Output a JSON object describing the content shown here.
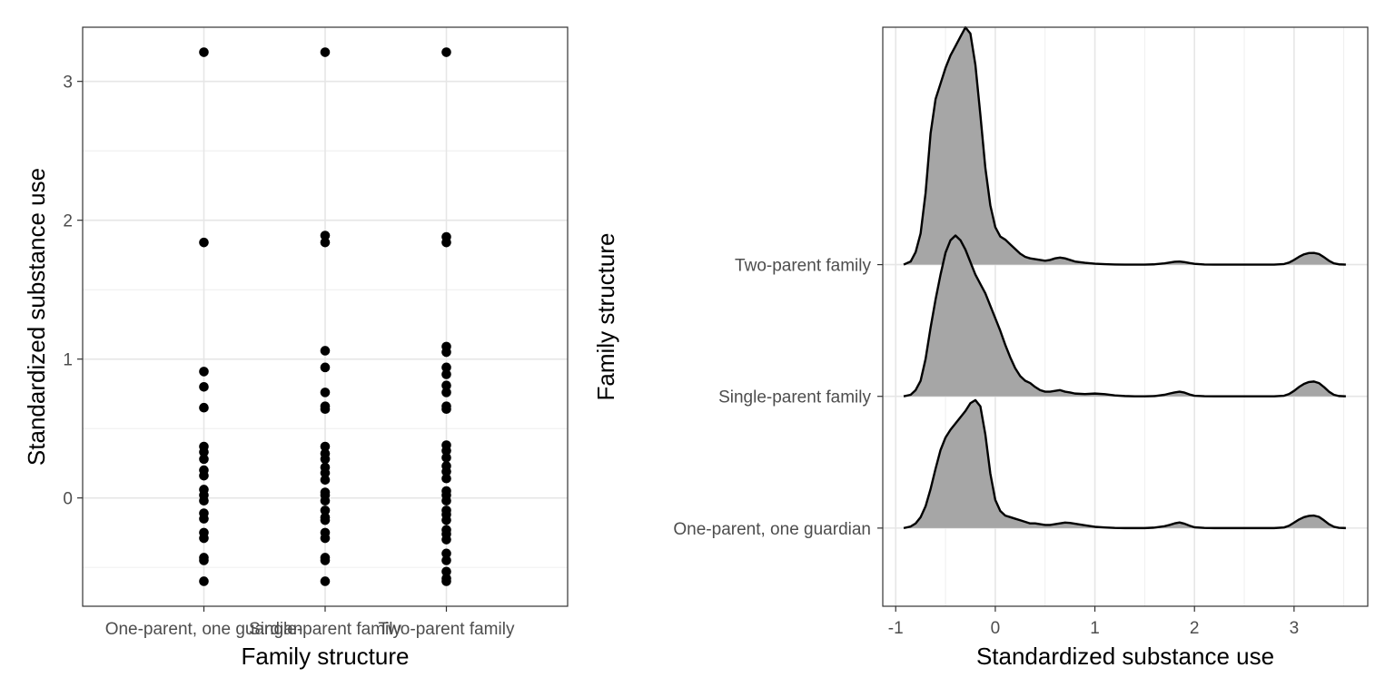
{
  "chart_data": [
    {
      "type": "scatter",
      "xlabel": "Family structure",
      "ylabel": "Standardized substance use",
      "categories": [
        "One-parent, one guardian",
        "Single-parent family",
        "Two-parent family"
      ],
      "y_ticks": [
        0,
        1,
        2,
        3
      ],
      "y_tick_labels": [
        "0",
        "1",
        "2",
        "3"
      ],
      "ylim": [
        -0.78,
        3.39
      ],
      "grid": true,
      "point_color": "#000000",
      "points": [
        {
          "category": "One-parent, one guardian",
          "values": [
            3.21,
            1.84,
            0.91,
            0.8,
            0.65,
            0.37,
            0.33,
            0.28,
            0.2,
            0.16,
            0.06,
            0.02,
            -0.02,
            -0.11,
            -0.15,
            -0.25,
            -0.29,
            -0.43,
            -0.45,
            -0.6
          ]
        },
        {
          "category": "Single-parent family",
          "values": [
            3.21,
            1.89,
            1.84,
            1.06,
            0.94,
            0.76,
            0.66,
            0.64,
            0.37,
            0.32,
            0.28,
            0.22,
            0.18,
            0.13,
            0.04,
            0.02,
            -0.02,
            -0.09,
            -0.14,
            -0.16,
            -0.25,
            -0.29,
            -0.43,
            -0.45,
            -0.6
          ]
        },
        {
          "category": "Two-parent family",
          "values": [
            3.21,
            1.88,
            1.84,
            1.09,
            1.05,
            0.94,
            0.89,
            0.81,
            0.76,
            0.66,
            0.64,
            0.38,
            0.34,
            0.29,
            0.23,
            0.19,
            0.14,
            0.05,
            0.02,
            -0.02,
            -0.09,
            -0.12,
            -0.16,
            -0.23,
            -0.26,
            -0.3,
            -0.4,
            -0.45,
            -0.53,
            -0.58,
            -0.6
          ]
        }
      ]
    },
    {
      "type": "area",
      "subtype": "ridgeline-density",
      "xlabel": "Standardized substance use",
      "ylabel": "Family structure",
      "x_ticks": [
        -1,
        0,
        1,
        2,
        3
      ],
      "x_tick_labels": [
        "-1",
        "0",
        "1",
        "2",
        "3"
      ],
      "xlim": [
        -1.13,
        3.74
      ],
      "grid": true,
      "fill_color": "#a6a6a6",
      "line_color": "#000000",
      "x": [
        -0.92,
        -0.85,
        -0.8,
        -0.75,
        -0.7,
        -0.65,
        -0.6,
        -0.55,
        -0.5,
        -0.45,
        -0.4,
        -0.35,
        -0.3,
        -0.25,
        -0.2,
        -0.15,
        -0.1,
        -0.05,
        0.0,
        0.05,
        0.1,
        0.15,
        0.2,
        0.25,
        0.3,
        0.35,
        0.4,
        0.45,
        0.5,
        0.55,
        0.6,
        0.65,
        0.7,
        0.75,
        0.8,
        0.9,
        1.0,
        1.1,
        1.2,
        1.3,
        1.4,
        1.5,
        1.6,
        1.7,
        1.75,
        1.8,
        1.85,
        1.9,
        1.95,
        2.0,
        2.1,
        2.2,
        2.4,
        2.6,
        2.8,
        2.9,
        2.95,
        3.0,
        3.05,
        3.1,
        3.15,
        3.2,
        3.25,
        3.3,
        3.35,
        3.4,
        3.45,
        3.52
      ],
      "series": [
        {
          "name": "One-parent, one guardian",
          "values": [
            0.0,
            0.01,
            0.03,
            0.07,
            0.14,
            0.25,
            0.38,
            0.5,
            0.58,
            0.63,
            0.67,
            0.71,
            0.75,
            0.8,
            0.82,
            0.78,
            0.6,
            0.35,
            0.18,
            0.11,
            0.08,
            0.07,
            0.06,
            0.05,
            0.04,
            0.03,
            0.03,
            0.025,
            0.02,
            0.02,
            0.025,
            0.03,
            0.035,
            0.033,
            0.028,
            0.018,
            0.008,
            0.004,
            0.001,
            0.0,
            0.0,
            0.0,
            0.003,
            0.012,
            0.02,
            0.03,
            0.036,
            0.028,
            0.015,
            0.005,
            0.001,
            0.0,
            0.0,
            0.0,
            0.0,
            0.004,
            0.015,
            0.035,
            0.055,
            0.07,
            0.078,
            0.08,
            0.072,
            0.05,
            0.025,
            0.008,
            0.002,
            0.0
          ]
        },
        {
          "name": "Single-parent family",
          "values": [
            0.0,
            0.01,
            0.04,
            0.1,
            0.24,
            0.44,
            0.62,
            0.78,
            0.92,
            1.0,
            1.03,
            1.0,
            0.94,
            0.86,
            0.78,
            0.72,
            0.66,
            0.58,
            0.5,
            0.42,
            0.33,
            0.25,
            0.18,
            0.13,
            0.1,
            0.085,
            0.06,
            0.04,
            0.03,
            0.03,
            0.035,
            0.04,
            0.03,
            0.025,
            0.018,
            0.015,
            0.018,
            0.014,
            0.006,
            0.002,
            0.0,
            0.0,
            0.002,
            0.01,
            0.018,
            0.025,
            0.03,
            0.024,
            0.012,
            0.004,
            0.001,
            0.0,
            0.0,
            0.0,
            0.0,
            0.004,
            0.015,
            0.035,
            0.06,
            0.08,
            0.092,
            0.095,
            0.085,
            0.06,
            0.03,
            0.01,
            0.002,
            0.0
          ]
        },
        {
          "name": "Two-parent family",
          "values": [
            0.0,
            0.02,
            0.08,
            0.2,
            0.46,
            0.84,
            1.06,
            1.16,
            1.26,
            1.34,
            1.4,
            1.46,
            1.52,
            1.48,
            1.28,
            0.96,
            0.62,
            0.38,
            0.24,
            0.18,
            0.16,
            0.13,
            0.1,
            0.07,
            0.05,
            0.04,
            0.035,
            0.03,
            0.025,
            0.03,
            0.04,
            0.045,
            0.04,
            0.03,
            0.02,
            0.012,
            0.006,
            0.003,
            0.001,
            0.0,
            0.0,
            0.0,
            0.002,
            0.008,
            0.013,
            0.018,
            0.02,
            0.016,
            0.01,
            0.005,
            0.001,
            0.0,
            0.0,
            0.0,
            0.0,
            0.004,
            0.013,
            0.03,
            0.05,
            0.066,
            0.074,
            0.075,
            0.068,
            0.048,
            0.025,
            0.008,
            0.002,
            0.0
          ]
        }
      ],
      "y_categories": [
        "One-parent, one guardian",
        "Single-parent family",
        "Two-parent family"
      ]
    }
  ]
}
